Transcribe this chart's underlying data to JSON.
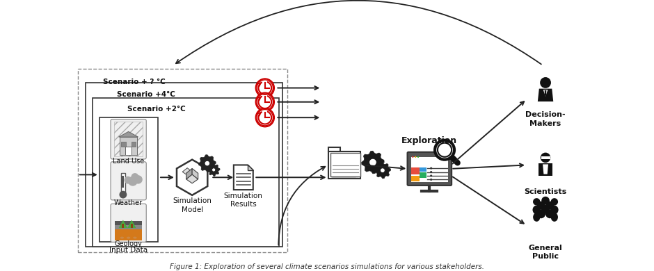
{
  "title": "Figure 1: Exploration of several climate scenarios simulations for various stakeholders.",
  "bg_color": "#ffffff",
  "scenario_labels": [
    "Scenario + ? °C",
    "Scenario +4°C",
    "Scenario +2°C"
  ],
  "flow_labels": [
    "Simulation\nModel",
    "Simulation\nResults"
  ],
  "right_labels": [
    "Decision-\nMakers",
    "Scientists",
    "General\nPublic"
  ],
  "exploration_label": "Exploration",
  "clock_color": "#cc0000",
  "arrow_color": "#222222",
  "text_color": "#111111",
  "icon_color": "#1a1a1a",
  "geo_orange": "#d4791a",
  "geo_green": "#4aaa40",
  "monitor_colors": [
    "#e74c3c",
    "#3498db",
    "#f39c12",
    "#27ae60"
  ]
}
